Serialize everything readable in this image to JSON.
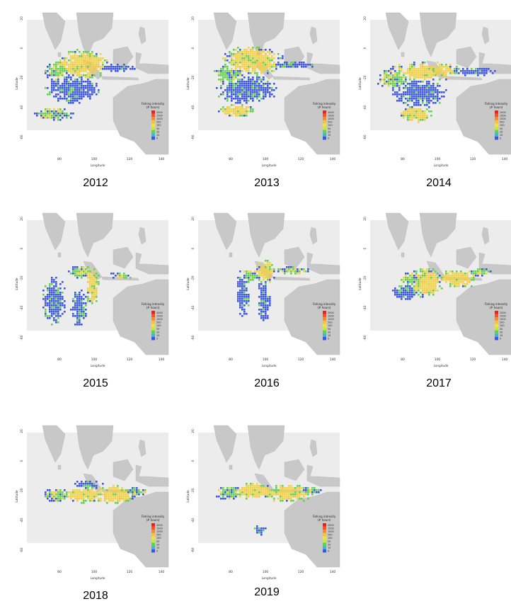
{
  "figure": {
    "axis": {
      "xlabel": "Longitude",
      "ylabel": "Latitude",
      "xticks": [
        "80",
        "100",
        "120",
        "140"
      ],
      "yticks": [
        "20",
        "0",
        "-20",
        "-40",
        "-60"
      ]
    },
    "legend": {
      "title_line1": "Fishing intensity",
      "title_line2": "(# hours)",
      "levels": [
        "2000",
        "1500",
        "1000",
        "500",
        "100",
        "50",
        "20",
        "10",
        "0"
      ],
      "colors": [
        "#e8231f",
        "#f0572b",
        "#f38a3a",
        "#f6c040",
        "#f4e23c",
        "#c8e64a",
        "#5fd34d",
        "#3fb6d8",
        "#3c55e0"
      ]
    },
    "colors": {
      "land": "#c8c8c8",
      "sea_panel": "#ececec",
      "effort_low": "#3c55e0",
      "effort_mid": "#5fd34d",
      "effort_high": "#f4d23c"
    },
    "panels": [
      {
        "year": "2012"
      },
      {
        "year": "2013"
      },
      {
        "year": "2014"
      },
      {
        "year": "2015"
      },
      {
        "year": "2016"
      },
      {
        "year": "2017"
      },
      {
        "year": "2018"
      },
      {
        "year": "2019"
      }
    ]
  }
}
